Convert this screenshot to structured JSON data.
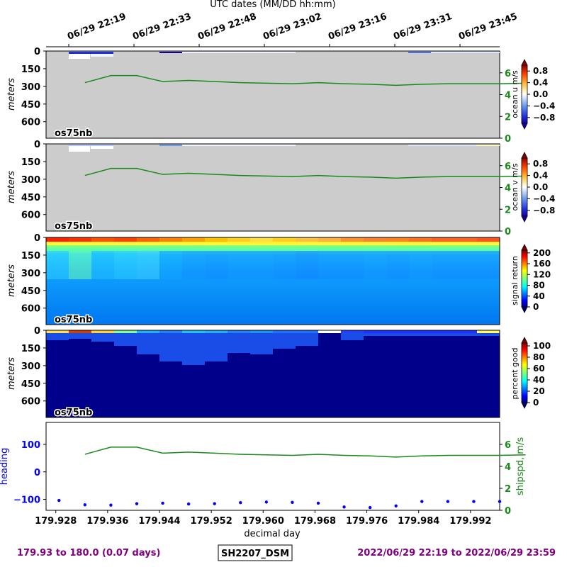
{
  "top_axis_label": "UTC dates (MM/DD hh:mm)",
  "top_ticks": [
    "06/29 22:19",
    "06/29 22:33",
    "06/29 22:48",
    "06/29 23:02",
    "06/29 23:16",
    "06/29 23:31",
    "06/29 23:45"
  ],
  "bottom_axis_label": "decimal day",
  "footer": {
    "left": "179.93 to 180.0 (0.07 days)",
    "center": "SH2207_DSM",
    "right": "2022/06/29 22:19 to 2022/06/29 23:59"
  },
  "colors": {
    "speed_line": "#1a8a1a",
    "heading_points": "#0000ff",
    "purple_text": "#800080",
    "no_data": "#cccccc"
  },
  "chart_data": [
    {
      "type": "heatmap",
      "panel_label": "os75nb",
      "ylabel": "meters",
      "yticks": [
        0,
        150,
        300,
        450,
        600
      ],
      "colorbar_label": "ocean u m/s",
      "colorbar_ticks": [
        "0.8",
        "0.4",
        "0.0",
        "−0.4",
        "−0.8"
      ],
      "colorbar_range": [
        -1,
        1
      ],
      "right_axis_ticks": [
        "6",
        "4",
        "2",
        "0"
      ],
      "overlay_label": "shipspd, m/s"
    },
    {
      "type": "heatmap",
      "panel_label": "os75nb",
      "ylabel": "meters",
      "yticks": [
        0,
        150,
        300,
        450,
        600
      ],
      "colorbar_label": "ocean v m/s",
      "colorbar_ticks": [
        "0.8",
        "0.4",
        "0.0",
        "−0.4",
        "−0.8"
      ],
      "colorbar_range": [
        -1,
        1
      ],
      "right_axis_ticks": [
        "6",
        "4",
        "2",
        "0"
      ],
      "overlay_label": "shipspd, m/s"
    },
    {
      "type": "heatmap",
      "panel_label": "os75nb",
      "ylabel": "meters",
      "yticks": [
        0,
        150,
        300,
        450,
        600
      ],
      "colorbar_label": "signal return",
      "colorbar_ticks": [
        "200",
        "160",
        "120",
        "80",
        "40",
        "0"
      ],
      "colorbar_range": [
        0,
        210
      ]
    },
    {
      "type": "heatmap",
      "panel_label": "os75nb",
      "ylabel": "meters",
      "yticks": [
        0,
        150,
        300,
        450,
        600
      ],
      "colorbar_label": "percent good",
      "colorbar_ticks": [
        "100",
        "80",
        "60",
        "40",
        "20",
        "0"
      ],
      "colorbar_range": [
        0,
        105
      ]
    },
    {
      "type": "scatter",
      "ylabel": "heading",
      "yticks": [
        "100",
        "0",
        "−100"
      ],
      "right_ylabel": "shipspd, m/s",
      "right_ticks": [
        "6",
        "4",
        "2",
        "0"
      ],
      "xticks": [
        "179.928",
        "179.936",
        "179.944",
        "179.952",
        "179.960",
        "179.968",
        "179.976",
        "179.984",
        "179.992"
      ],
      "heading_x": [
        179.9285,
        179.9325,
        179.9365,
        179.9405,
        179.9445,
        179.9485,
        179.9525,
        179.9565,
        179.9605,
        179.9645,
        179.9685,
        179.9725,
        179.9765,
        179.9805,
        179.9845,
        179.9885,
        179.9925,
        179.9965,
        180.0005
      ],
      "heading_y": [
        -104,
        -120,
        -121,
        -116,
        -114,
        -117,
        -116,
        -112,
        -110,
        -111,
        -114,
        -128,
        -130,
        -124,
        -108,
        -108,
        -108,
        -108,
        -108
      ],
      "speed_x": [
        179.9325,
        179.9365,
        179.9405,
        179.9445,
        179.9485,
        179.9525,
        179.9565,
        179.9605,
        179.9645,
        179.9685,
        179.9725,
        179.9765,
        179.9805,
        179.9845,
        179.9885,
        179.9925,
        179.9965,
        180.0005
      ],
      "speed_y": [
        5.1,
        5.75,
        5.75,
        5.2,
        5.3,
        5.2,
        5.1,
        5.05,
        5.0,
        5.1,
        5.0,
        4.95,
        4.85,
        4.95,
        5.0,
        5.0,
        5.0,
        5.05
      ]
    }
  ]
}
